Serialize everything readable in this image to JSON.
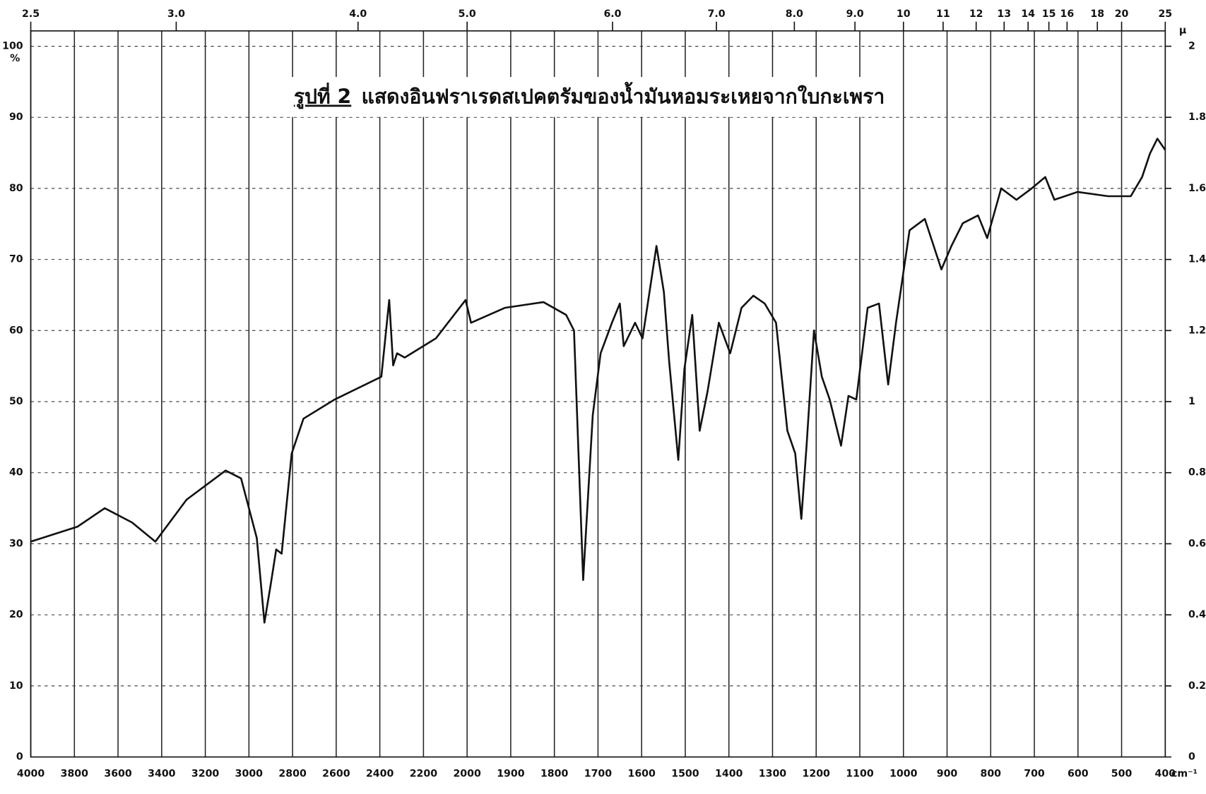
{
  "chart_data": {
    "type": "line",
    "title_label": "รูปที่ 2",
    "title": "แสดงอินฟราเรดสเปคตรัมของน้ำมันหอมระเหยจากใบกะเพรา",
    "xlabel": "cm⁻¹",
    "ylabel": "%",
    "x2label": "μ",
    "xlim": [
      4000,
      400
    ],
    "x_scale_change": 2000,
    "x_scale_factor": 2,
    "xticks": [
      4000,
      3800,
      3600,
      3400,
      3200,
      3000,
      2800,
      2600,
      2400,
      2200,
      2000,
      1900,
      1800,
      1700,
      1600,
      1500,
      1400,
      1300,
      1200,
      1100,
      1000,
      900,
      800,
      700,
      600,
      500,
      400
    ],
    "x2ticks": [
      2.5,
      {
        "value": 3,
        "label": "3.0"
      },
      {
        "value": 4,
        "label": "4.0"
      },
      {
        "value": 5,
        "label": "5.0"
      },
      {
        "value": 6,
        "label": "6.0"
      },
      {
        "value": 7,
        "label": "7.0"
      },
      {
        "value": 8,
        "label": "8.0"
      },
      {
        "value": 9,
        "label": "9.0"
      },
      10,
      11,
      12,
      13,
      14,
      15,
      16,
      18,
      20,
      25
    ],
    "ylim": [
      0,
      100
    ],
    "yticks": [
      0,
      10,
      20,
      30,
      40,
      50,
      60,
      70,
      80,
      90,
      100
    ],
    "y2lim": [
      0,
      2
    ],
    "y2ticks": [
      0,
      0.2,
      0.4,
      0.6,
      0.8,
      1,
      1.2,
      1.4,
      1.6,
      1.8,
      2
    ],
    "grid": true,
    "color": "#111111",
    "x": [
      4000,
      3786,
      3661,
      3536,
      3429,
      3286,
      3107,
      3036,
      2964,
      2929,
      2900,
      2875,
      2850,
      2804,
      2750,
      2607,
      2393,
      2357,
      2339,
      2321,
      2286,
      2143,
      2007,
      1991,
      1913,
      1825,
      1773,
      1755,
      1734,
      1712,
      1694,
      1668,
      1650,
      1641,
      1615,
      1598,
      1566,
      1549,
      1537,
      1516,
      1502,
      1484,
      1467,
      1449,
      1423,
      1397,
      1371,
      1344,
      1318,
      1292,
      1266,
      1248,
      1234,
      1222,
      1205,
      1187,
      1169,
      1143,
      1126,
      1108,
      1082,
      1056,
      1035,
      1017,
      986,
      951,
      913,
      890,
      864,
      829,
      808,
      776,
      741,
      706,
      675,
      654,
      601,
      531,
      479,
      453,
      435,
      418,
      400
    ],
    "values": [
      30.3,
      32.4,
      35,
      33,
      30.3,
      36.2,
      40.3,
      39.2,
      30.8,
      18.9,
      24.3,
      29.2,
      28.6,
      42.7,
      47.6,
      50.3,
      53.5,
      64.3,
      55.1,
      56.8,
      56.2,
      58.9,
      64.3,
      61.1,
      63.2,
      64,
      62.2,
      60,
      24.9,
      48.1,
      56.8,
      61.1,
      63.8,
      57.8,
      61.1,
      58.9,
      71.9,
      65.4,
      55.7,
      41.8,
      54.6,
      62.2,
      45.9,
      51.4,
      61.1,
      56.8,
      63.2,
      64.9,
      63.8,
      61.1,
      45.9,
      42.7,
      33.5,
      43.8,
      60,
      53.5,
      50.3,
      43.8,
      50.8,
      50.3,
      63.2,
      63.8,
      52.4,
      61.1,
      74.1,
      75.7,
      68.6,
      71.9,
      75.1,
      76.2,
      73,
      80,
      78.4,
      80,
      81.6,
      78.4,
      79.5,
      78.9,
      78.9,
      81.6,
      84.9,
      87,
      85.4
    ]
  }
}
